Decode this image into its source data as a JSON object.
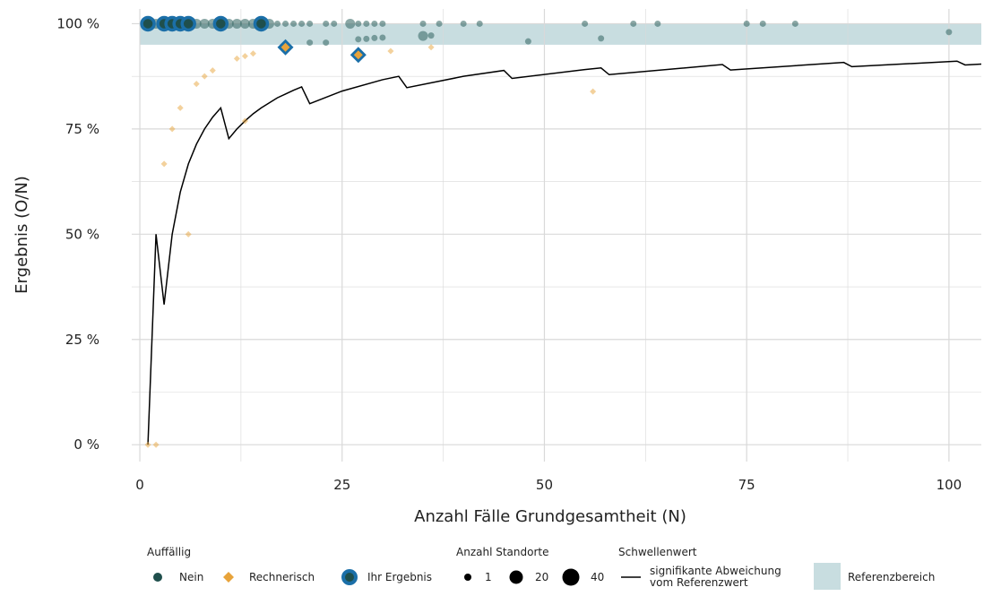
{
  "chart_data": {
    "type": "scatter",
    "xlabel": "Anzahl Fälle Grundgesamtheit (N)",
    "ylabel": "Ergebnis (O/N)",
    "xlim": [
      -1,
      104
    ],
    "ylim": [
      -0.04,
      1.035
    ],
    "x_ticks": [
      0,
      25,
      50,
      75,
      100
    ],
    "x_tick_labels": [
      "0",
      "25",
      "50",
      "75",
      "100"
    ],
    "y_ticks": [
      0,
      0.25,
      0.5,
      0.75,
      1.0
    ],
    "y_tick_labels": [
      "0 %",
      "25 %",
      "50 %",
      "75 %",
      "100 %"
    ],
    "grid": true,
    "reference_range": [
      0.95,
      1.0
    ],
    "colors": {
      "nein": "#3d6e6a",
      "rechnerisch": "#e8a33a",
      "ihr_ergebnis": "#1b6fa8",
      "reference": "#c8dde0",
      "threshold": "#000000",
      "grid": "#d9d9d9"
    },
    "series": [
      {
        "name": "Nein",
        "marker": "circle",
        "points": [
          [
            1,
            1.0,
            20
          ],
          [
            2,
            1.0,
            20
          ],
          [
            3,
            1.0,
            20
          ],
          [
            4,
            1.0,
            20
          ],
          [
            5,
            1.0,
            20
          ],
          [
            6,
            1.0,
            20
          ],
          [
            7,
            1.0,
            20
          ],
          [
            8,
            1.0,
            20
          ],
          [
            9,
            1.0,
            20
          ],
          [
            10,
            1.0,
            20
          ],
          [
            11,
            1.0,
            20
          ],
          [
            12,
            1.0,
            20
          ],
          [
            13,
            1.0,
            20
          ],
          [
            14,
            1.0,
            20
          ],
          [
            15,
            1.0,
            20
          ],
          [
            16,
            1.0,
            20
          ],
          [
            17,
            1.0,
            1
          ],
          [
            18,
            1.0,
            1
          ],
          [
            19,
            1.0,
            1
          ],
          [
            20,
            1.0,
            1
          ],
          [
            21,
            1.0,
            1
          ],
          [
            23,
            1.0,
            1
          ],
          [
            24,
            1.0,
            1
          ],
          [
            26,
            1.0,
            20
          ],
          [
            27,
            1.0,
            1
          ],
          [
            28,
            1.0,
            1
          ],
          [
            29,
            1.0,
            1
          ],
          [
            30,
            1.0,
            1
          ],
          [
            35,
            1.0,
            1
          ],
          [
            37,
            1.0,
            1
          ],
          [
            40,
            1.0,
            1
          ],
          [
            42,
            1.0,
            1
          ],
          [
            55,
            1.0,
            1
          ],
          [
            61,
            1.0,
            1
          ],
          [
            64,
            1.0,
            1
          ],
          [
            75,
            1.0,
            1
          ],
          [
            77,
            1.0,
            1
          ],
          [
            81,
            1.0,
            1
          ],
          [
            21,
            0.955,
            1
          ],
          [
            23,
            0.955,
            1
          ],
          [
            27,
            0.963,
            1
          ],
          [
            28,
            0.964,
            1
          ],
          [
            29,
            0.966,
            1
          ],
          [
            30,
            0.967,
            1
          ],
          [
            35,
            0.971,
            20
          ],
          [
            36,
            0.972,
            1
          ],
          [
            48,
            0.958,
            1
          ],
          [
            57,
            0.965,
            1
          ],
          [
            100,
            0.98,
            1
          ]
        ]
      },
      {
        "name": "Rechnerisch",
        "marker": "diamond",
        "points": [
          [
            1,
            0.0,
            1
          ],
          [
            2,
            0.0,
            1
          ],
          [
            3,
            0.667,
            1
          ],
          [
            4,
            0.75,
            1
          ],
          [
            5,
            0.8,
            1
          ],
          [
            6,
            0.5,
            1
          ],
          [
            7,
            0.857,
            1
          ],
          [
            8,
            0.875,
            1
          ],
          [
            9,
            0.889,
            1
          ],
          [
            12,
            0.917,
            1
          ],
          [
            13,
            0.923,
            1
          ],
          [
            14,
            0.929,
            1
          ],
          [
            13,
            0.769,
            1
          ],
          [
            31,
            0.935,
            1
          ],
          [
            36,
            0.944,
            1
          ],
          [
            56,
            0.839,
            1
          ]
        ]
      },
      {
        "name": "Ihr Ergebnis",
        "points": [
          {
            "x": 1,
            "y": 1.0,
            "kind": "nein"
          },
          {
            "x": 3,
            "y": 1.0,
            "kind": "nein"
          },
          {
            "x": 4,
            "y": 1.0,
            "kind": "nein"
          },
          {
            "x": 5,
            "y": 1.0,
            "kind": "nein"
          },
          {
            "x": 6,
            "y": 1.0,
            "kind": "nein"
          },
          {
            "x": 10,
            "y": 1.0,
            "kind": "nein"
          },
          {
            "x": 15,
            "y": 1.0,
            "kind": "nein"
          },
          {
            "x": 18,
            "y": 0.944,
            "kind": "rechnerisch"
          },
          {
            "x": 27,
            "y": 0.926,
            "kind": "rechnerisch"
          }
        ]
      }
    ],
    "threshold_line": [
      [
        1,
        0.0
      ],
      [
        2,
        0.5
      ],
      [
        3,
        0.333
      ],
      [
        4,
        0.5
      ],
      [
        5,
        0.6
      ],
      [
        6,
        0.667
      ],
      [
        7,
        0.714
      ],
      [
        8,
        0.75
      ],
      [
        9,
        0.778
      ],
      [
        10,
        0.8
      ],
      [
        11,
        0.727
      ],
      [
        12,
        0.75
      ],
      [
        13,
        0.769
      ],
      [
        14,
        0.786
      ],
      [
        15,
        0.8
      ],
      [
        16,
        0.812
      ],
      [
        17,
        0.824
      ],
      [
        18,
        0.833
      ],
      [
        19,
        0.842
      ],
      [
        20,
        0.85
      ],
      [
        21,
        0.81
      ],
      [
        25,
        0.84
      ],
      [
        30,
        0.867
      ],
      [
        32,
        0.875
      ],
      [
        33,
        0.848
      ],
      [
        40,
        0.875
      ],
      [
        45,
        0.889
      ],
      [
        46,
        0.87
      ],
      [
        55,
        0.891
      ],
      [
        57,
        0.895
      ],
      [
        58,
        0.879
      ],
      [
        72,
        0.903
      ],
      [
        73,
        0.89
      ],
      [
        87,
        0.908
      ],
      [
        88,
        0.898
      ],
      [
        101,
        0.911
      ],
      [
        102,
        0.902
      ],
      [
        104,
        0.904
      ]
    ],
    "legend": {
      "placement": "bottom",
      "auffaellig": {
        "title": "Auffällig",
        "items": [
          "Nein",
          "Rechnerisch",
          "Ihr Ergebnis"
        ]
      },
      "standorte": {
        "title": "Anzahl Standorte",
        "items": [
          "1",
          "20",
          "40"
        ]
      },
      "schwellenwert": {
        "title": "Schwellenwert",
        "line1": "signifikante Abweichung",
        "line2": "vom Referenzwert"
      },
      "referenz": {
        "label": "Referenzbereich"
      }
    }
  }
}
